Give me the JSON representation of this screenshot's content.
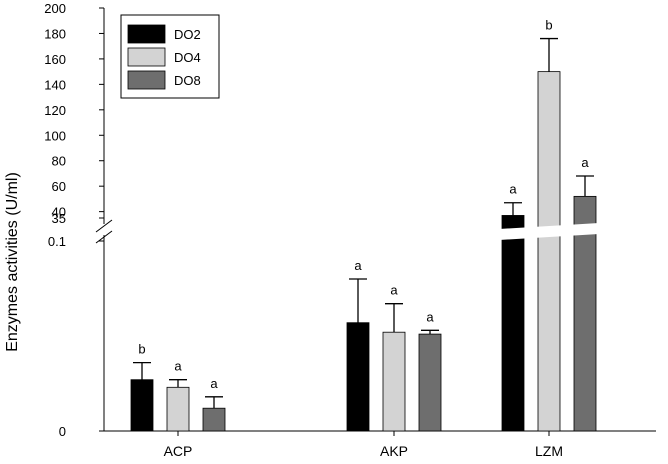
{
  "chart_data": {
    "type": "bar",
    "ylabel": "Enzymes activities (U/ml)",
    "categories": [
      "ACP",
      "AKP",
      "LZM"
    ],
    "y_axis_segments": {
      "lower": {
        "range": [
          0,
          0.1
        ],
        "ticks": [
          "0",
          "0.1"
        ]
      },
      "upper": {
        "range": [
          35,
          200
        ],
        "ticks": [
          "35",
          "40",
          "60",
          "80",
          "100",
          "120",
          "140",
          "160",
          "180",
          "200"
        ]
      },
      "broken_axis": true
    },
    "series": [
      {
        "name": "DO2",
        "color": "#000000",
        "values": [
          0.027,
          0.057,
          37
        ],
        "errors": [
          0.009,
          0.023,
          10
        ],
        "letters": [
          "b",
          "a",
          "a"
        ]
      },
      {
        "name": "DO4",
        "color": "#d3d3d3",
        "values": [
          0.023,
          0.052,
          150
        ],
        "errors": [
          0.004,
          0.015,
          26
        ],
        "letters": [
          "a",
          "a",
          "b"
        ]
      },
      {
        "name": "DO8",
        "color": "#6e6e6e",
        "values": [
          0.012,
          0.051,
          52
        ],
        "errors": [
          0.006,
          0.002,
          16
        ],
        "letters": [
          "a",
          "a",
          "a"
        ]
      }
    ],
    "legend": {
      "position": "top-left",
      "entries": [
        "DO2",
        "DO4",
        "DO8"
      ]
    },
    "grid": false
  }
}
